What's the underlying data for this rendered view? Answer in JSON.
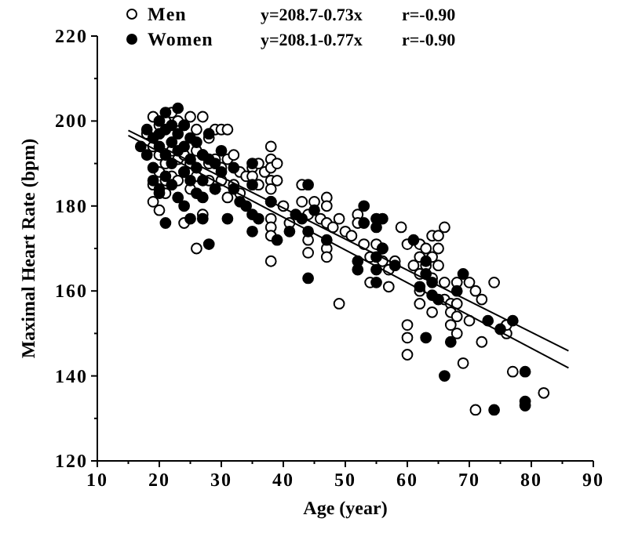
{
  "chart_data": {
    "type": "scatter",
    "xlabel": "Age (year)",
    "ylabel": "Maximal Heart Rate (bpm)",
    "xlim": [
      10,
      90
    ],
    "ylim": [
      120,
      220
    ],
    "xticks": [
      10,
      {
        "value": 15,
        "label": null
      },
      20,
      {
        "value": 25,
        "label": null
      },
      30,
      {
        "value": 35,
        "label": null
      },
      40,
      {
        "value": 45,
        "label": null
      },
      50,
      {
        "value": 55,
        "label": null
      },
      60,
      {
        "value": 65,
        "label": null
      },
      70,
      {
        "value": 75,
        "label": null
      },
      80,
      {
        "value": 85,
        "label": null
      },
      90
    ],
    "yticks": [
      120,
      {
        "value": 130,
        "label": null
      },
      140,
      {
        "value": 150,
        "label": null
      },
      160,
      {
        "value": 170,
        "label": null
      },
      180,
      {
        "value": 190,
        "label": null
      },
      200,
      {
        "value": 210,
        "label": null
      },
      220
    ],
    "grid": false,
    "legend": "top left",
    "marker": "circle",
    "annotations": [
      "y=208.7-0.73x",
      "r=-0.90",
      "y=208.1-0.77x",
      "r=-0.90"
    ],
    "series": [
      {
        "name": "Men",
        "color": "#ffffff",
        "x": [
          19,
          20,
          21,
          22,
          23,
          24,
          25,
          27,
          29,
          30,
          31,
          28,
          26,
          18,
          19,
          20,
          21,
          22,
          23,
          24,
          25,
          26,
          27,
          28,
          29,
          30,
          31,
          32,
          33,
          20,
          21,
          22,
          23,
          24,
          26,
          28,
          30,
          32,
          19,
          19,
          20,
          24,
          26,
          27,
          21,
          25,
          29,
          31,
          33,
          34,
          35,
          36,
          37,
          38,
          38,
          38,
          38,
          38,
          38,
          38,
          38,
          38,
          38,
          39,
          39,
          36,
          35,
          40,
          41,
          43,
          43,
          44,
          44,
          44,
          45,
          46,
          47,
          47,
          47,
          47,
          47,
          48,
          49,
          49,
          50,
          51,
          52,
          52,
          53,
          54,
          54,
          55,
          56,
          56,
          57,
          57,
          58,
          59,
          60,
          60,
          60,
          60,
          61,
          62,
          62,
          62,
          62,
          62,
          63,
          63,
          64,
          64,
          64,
          64,
          65,
          65,
          65,
          66,
          66,
          66,
          67,
          67,
          67,
          68,
          68,
          68,
          68,
          69,
          70,
          70,
          71,
          71,
          72,
          72,
          74,
          76,
          76,
          77,
          82
        ],
        "values": [
          201,
          199,
          200,
          202,
          200,
          199,
          201,
          201,
          198,
          198,
          198,
          196,
          198,
          197,
          194,
          192,
          190,
          193,
          191,
          192,
          190,
          193,
          192,
          190,
          191,
          189,
          191,
          192,
          188,
          188,
          186,
          187,
          186,
          188,
          187,
          186,
          186,
          185,
          185,
          181,
          179,
          176,
          170,
          178,
          183,
          184,
          184,
          182,
          183,
          187,
          189,
          190,
          188,
          194,
          191,
          189,
          186,
          184,
          181,
          177,
          175,
          173,
          167,
          190,
          186,
          185,
          187,
          180,
          176,
          185,
          181,
          178,
          172,
          169,
          181,
          177,
          182,
          180,
          176,
          170,
          168,
          175,
          177,
          157,
          174,
          173,
          178,
          176,
          171,
          168,
          162,
          171,
          170,
          167,
          165,
          161,
          167,
          175,
          171,
          152,
          149,
          145,
          166,
          171,
          168,
          164,
          160,
          157,
          170,
          166,
          173,
          168,
          163,
          155,
          173,
          170,
          166,
          175,
          162,
          158,
          157,
          155,
          152,
          162,
          157,
          154,
          150,
          143,
          162,
          153,
          160,
          132,
          158,
          148,
          162,
          150,
          152,
          141,
          136
        ]
      },
      {
        "name": "Women",
        "color": "#000000",
        "x": [
          17,
          18,
          18,
          19,
          19,
          19,
          20,
          20,
          20,
          20,
          20,
          21,
          21,
          21,
          21,
          21,
          22,
          22,
          22,
          22,
          23,
          23,
          23,
          23,
          24,
          24,
          24,
          24,
          25,
          25,
          25,
          25,
          26,
          26,
          26,
          27,
          27,
          27,
          27,
          28,
          28,
          28,
          29,
          29,
          30,
          30,
          31,
          32,
          32,
          33,
          34,
          35,
          35,
          35,
          35,
          36,
          38,
          39,
          41,
          42,
          43,
          44,
          44,
          44,
          45,
          47,
          52,
          52,
          53,
          53,
          55,
          55,
          55,
          55,
          55,
          56,
          56,
          58,
          61,
          62,
          63,
          63,
          63,
          64,
          64,
          65,
          66,
          67,
          68,
          69,
          73,
          74,
          75,
          77,
          79,
          79,
          79
        ],
        "values": [
          194,
          198,
          192,
          196,
          189,
          186,
          200,
          197,
          194,
          184,
          183,
          202,
          198,
          192,
          187,
          176,
          199,
          195,
          190,
          185,
          203,
          197,
          193,
          182,
          199,
          194,
          188,
          180,
          196,
          191,
          186,
          177,
          195,
          189,
          183,
          192,
          186,
          182,
          177,
          197,
          191,
          171,
          190,
          184,
          193,
          188,
          177,
          189,
          184,
          181,
          180,
          190,
          185,
          178,
          174,
          177,
          181,
          172,
          174,
          178,
          177,
          185,
          174,
          163,
          179,
          172,
          167,
          165,
          180,
          176,
          177,
          175,
          168,
          165,
          162,
          177,
          170,
          166,
          172,
          161,
          167,
          164,
          149,
          162,
          159,
          158,
          140,
          148,
          160,
          164,
          153,
          132,
          151,
          153,
          141,
          134,
          133
        ]
      },
      {
        "type": "line",
        "color": "#000000",
        "marker": "none",
        "x": [
          15,
          86
        ],
        "values": [
          197.8,
          145.9
        ]
      },
      {
        "type": "line",
        "color": "#000000",
        "marker": "none",
        "x": [
          15,
          86
        ],
        "values": [
          196.6,
          141.9
        ]
      }
    ]
  }
}
